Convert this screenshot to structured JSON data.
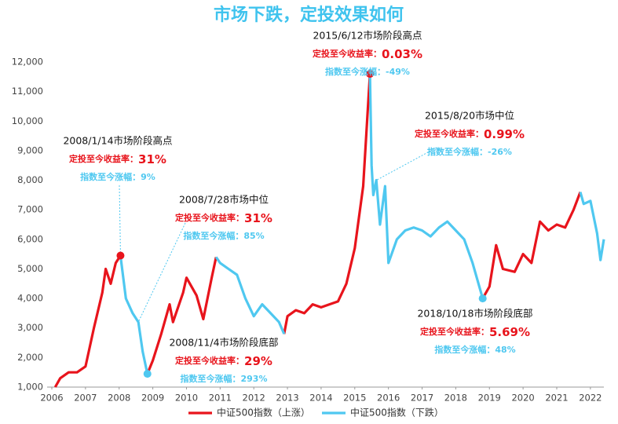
{
  "chart_data": {
    "type": "line",
    "title": "市场下跌，定投效果如何",
    "x": [
      2006.1,
      2006.25,
      2006.5,
      2006.75,
      2007.0,
      2007.25,
      2007.5,
      2007.6,
      2007.75,
      2007.9,
      2008.04,
      2008.2,
      2008.4,
      2008.57,
      2008.7,
      2008.84,
      2009.0,
      2009.25,
      2009.5,
      2009.6,
      2009.9,
      2010.0,
      2010.3,
      2010.5,
      2010.75,
      2010.88,
      2011.0,
      2011.25,
      2011.5,
      2011.75,
      2012.0,
      2012.25,
      2012.5,
      2012.75,
      2012.9,
      2013.0,
      2013.25,
      2013.5,
      2013.75,
      2014.0,
      2014.25,
      2014.5,
      2014.75,
      2015.0,
      2015.25,
      2015.45,
      2015.5,
      2015.55,
      2015.64,
      2015.75,
      2015.9,
      2016.0,
      2016.25,
      2016.5,
      2016.75,
      2017.0,
      2017.25,
      2017.5,
      2017.75,
      2018.0,
      2018.25,
      2018.5,
      2018.8,
      2019.0,
      2019.2,
      2019.4,
      2019.75,
      2020.0,
      2020.25,
      2020.5,
      2020.75,
      2021.0,
      2021.25,
      2021.5,
      2021.7,
      2021.8,
      2022.0,
      2022.2,
      2022.3,
      2022.4
    ],
    "series": [
      {
        "name": "中证500指数（上涨）",
        "color": "#e8141c",
        "values": [
          1000,
          1300,
          1500,
          1500,
          1700,
          3000,
          4200,
          5000,
          4500,
          5200,
          5450,
          null,
          null,
          null,
          null,
          1450,
          1900,
          2800,
          3800,
          3200,
          4200,
          4700,
          4100,
          3300,
          4700,
          5400,
          null,
          null,
          null,
          null,
          null,
          null,
          null,
          null,
          2800,
          3400,
          3600,
          3500,
          3800,
          3700,
          3800,
          3900,
          4500,
          5700,
          7800,
          11600,
          null,
          null,
          null,
          null,
          null,
          null,
          null,
          null,
          null,
          null,
          null,
          null,
          null,
          null,
          null,
          null,
          4000,
          4400,
          5800,
          5000,
          4900,
          5500,
          5200,
          6600,
          6300,
          6500,
          6400,
          7000,
          7600,
          null,
          null,
          null,
          null,
          null
        ]
      },
      {
        "name": "中证500指数（下跌）",
        "color": "#4fc8f0",
        "values": [
          null,
          null,
          null,
          null,
          null,
          null,
          null,
          null,
          null,
          null,
          5450,
          4000,
          3500,
          3200,
          2200,
          1450,
          null,
          null,
          null,
          null,
          null,
          null,
          null,
          null,
          null,
          5400,
          5200,
          5000,
          4800,
          4000,
          3400,
          3800,
          3500,
          3200,
          2800,
          null,
          null,
          null,
          null,
          null,
          null,
          null,
          null,
          null,
          null,
          11600,
          8500,
          7500,
          8000,
          6500,
          7800,
          5200,
          6000,
          6300,
          6400,
          6300,
          6100,
          6400,
          6600,
          6300,
          6000,
          5200,
          4000,
          null,
          null,
          null,
          null,
          null,
          null,
          null,
          null,
          null,
          null,
          null,
          7600,
          7200,
          7300,
          6200,
          5300,
          6000
        ]
      }
    ],
    "xlim": [
      2006,
      2022.4
    ],
    "xticks": [
      2006,
      2007,
      2008,
      2009,
      2010,
      2011,
      2012,
      2013,
      2014,
      2015,
      2016,
      2017,
      2018,
      2019,
      2020,
      2021,
      2022
    ],
    "ylim": [
      1000,
      12000
    ],
    "yticks": [
      {
        "value": 1000,
        "label": "1,000"
      },
      {
        "value": 2000,
        "label": "2,000"
      },
      {
        "value": 3000,
        "label": "3,000"
      },
      {
        "value": 4000,
        "label": "4,000"
      },
      {
        "value": 5000,
        "label": "5,000"
      },
      {
        "value": 6000,
        "label": "6,000"
      },
      {
        "value": 7000,
        "label": "7,000"
      },
      {
        "value": 8000,
        "label": "8,000"
      },
      {
        "value": 9000,
        "label": "9,000"
      },
      {
        "value": 10000,
        "label": "10,000"
      },
      {
        "value": 11000,
        "label": "11,000"
      },
      {
        "value": 12000,
        "label": "12,000"
      }
    ],
    "grid": false,
    "legend": "bottom",
    "annotations": [
      {
        "date_label": "2008/1/14市场阶段高点",
        "return_label": "定投至今收益率：",
        "return": "31%",
        "change_label": "指数至今涨幅：",
        "change": "9%",
        "x": 2008.04,
        "y": 5450,
        "dot": true,
        "leader": true,
        "color": "#e8141c"
      },
      {
        "date_label": "2008/7/28市场中位",
        "return_label": "定投至今收益率：",
        "return": "31%",
        "change_label": "指数至今涨幅：",
        "change": "85%",
        "x": 2008.57,
        "y": 3200,
        "dot": false,
        "leader": true,
        "color": "#4fc8f0"
      },
      {
        "date_label": "2008/11/4市场阶段底部",
        "return_label": "定投至今收益率：",
        "return": "29%",
        "change_label": "指数至今涨幅：",
        "change": "293%",
        "x": 2008.84,
        "y": 1450,
        "dot": true,
        "leader": false,
        "color": "#4fc8f0"
      },
      {
        "date_label": "2015/6/12市场阶段高点",
        "return_label": "定投至今收益率：",
        "return": "0.03%",
        "change_label": "指数至今涨幅：",
        "change": "-49%",
        "x": 2015.45,
        "y": 11600,
        "dot": true,
        "leader": false,
        "color": "#e8141c"
      },
      {
        "date_label": "2015/8/20市场中位",
        "return_label": "定投至今收益率：",
        "return": "0.99%",
        "change_label": "指数至今涨幅：",
        "change": "-26%",
        "x": 2015.64,
        "y": 8000,
        "dot": false,
        "leader": true,
        "color": "#4fc8f0"
      },
      {
        "date_label": "2018/10/18市场阶段底部",
        "return_label": "定投至今收益率：",
        "return": "5.69%",
        "change_label": "指数至今涨幅：",
        "change": "48%",
        "x": 2018.8,
        "y": 4000,
        "dot": true,
        "leader": false,
        "color": "#4fc8f0"
      }
    ]
  }
}
